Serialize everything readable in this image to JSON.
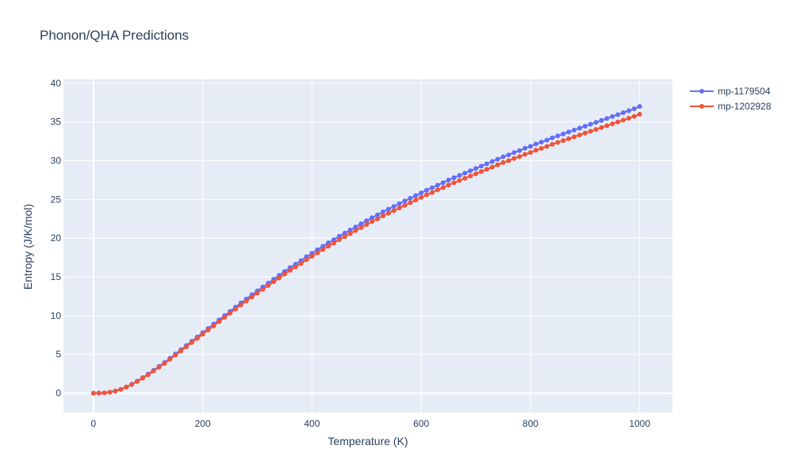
{
  "chart_data": {
    "type": "line",
    "title": "Phonon/QHA Predictions",
    "xlabel": "Temperature (K)",
    "ylabel": "Entropy (J/K/mol)",
    "xlim": [
      -55,
      1060
    ],
    "ylim": [
      -2.5,
      40.5
    ],
    "xticks": [
      0,
      200,
      400,
      600,
      800,
      1000
    ],
    "yticks": [
      0,
      5,
      10,
      15,
      20,
      25,
      30,
      35,
      40
    ],
    "grid": true,
    "legend_position": "top-right",
    "series": [
      {
        "name": "mp-1179504",
        "color": "#636efa",
        "x": [
          0,
          10,
          20,
          30,
          40,
          50,
          60,
          70,
          80,
          90,
          100,
          110,
          120,
          130,
          140,
          150,
          160,
          170,
          180,
          190,
          200,
          210,
          220,
          230,
          240,
          250,
          260,
          270,
          280,
          290,
          300,
          310,
          320,
          330,
          340,
          350,
          360,
          370,
          380,
          390,
          400,
          410,
          420,
          430,
          440,
          450,
          460,
          470,
          480,
          490,
          500,
          510,
          520,
          530,
          540,
          550,
          560,
          570,
          580,
          590,
          600,
          610,
          620,
          630,
          640,
          650,
          660,
          670,
          680,
          690,
          700,
          710,
          720,
          730,
          740,
          750,
          760,
          770,
          780,
          790,
          800,
          810,
          820,
          830,
          840,
          850,
          860,
          870,
          880,
          890,
          900,
          910,
          920,
          930,
          940,
          950,
          960,
          970,
          980,
          990,
          1000
        ],
        "y": [
          0,
          0.01,
          0.04,
          0.12,
          0.28,
          0.5,
          0.8,
          1.15,
          1.55,
          2,
          2.45,
          2.95,
          3.45,
          3.95,
          4.5,
          5.05,
          5.6,
          6.15,
          6.7,
          7.25,
          7.8,
          8.35,
          8.9,
          9.45,
          10,
          10.55,
          11.1,
          11.65,
          12.15,
          12.7,
          13.2,
          13.7,
          14.2,
          14.7,
          15.2,
          15.7,
          16.2,
          16.65,
          17.1,
          17.6,
          18.05,
          18.5,
          18.95,
          19.4,
          19.8,
          20.25,
          20.65,
          21.05,
          21.45,
          21.85,
          22.25,
          22.65,
          23,
          23.4,
          23.75,
          24.1,
          24.45,
          24.8,
          25.15,
          25.5,
          25.85,
          26.2,
          26.5,
          26.85,
          27.15,
          27.5,
          27.8,
          28.1,
          28.4,
          28.7,
          29,
          29.3,
          29.6,
          29.9,
          30.2,
          30.5,
          30.75,
          31.05,
          31.3,
          31.6,
          31.85,
          32.15,
          32.4,
          32.65,
          32.95,
          33.2,
          33.45,
          33.7,
          33.95,
          34.2,
          34.45,
          34.7,
          34.95,
          35.2,
          35.45,
          35.7,
          35.95,
          36.2,
          36.45,
          36.7,
          37
        ]
      },
      {
        "name": "mp-1202928",
        "color": "#ef553b",
        "x": [
          0,
          10,
          20,
          30,
          40,
          50,
          60,
          70,
          80,
          90,
          100,
          110,
          120,
          130,
          140,
          150,
          160,
          170,
          180,
          190,
          200,
          210,
          220,
          230,
          240,
          250,
          260,
          270,
          280,
          290,
          300,
          310,
          320,
          330,
          340,
          350,
          360,
          370,
          380,
          390,
          400,
          410,
          420,
          430,
          440,
          450,
          460,
          470,
          480,
          490,
          500,
          510,
          520,
          530,
          540,
          550,
          560,
          570,
          580,
          590,
          600,
          610,
          620,
          630,
          640,
          650,
          660,
          670,
          680,
          690,
          700,
          710,
          720,
          730,
          740,
          750,
          760,
          770,
          780,
          790,
          800,
          810,
          820,
          830,
          840,
          850,
          860,
          870,
          880,
          890,
          900,
          910,
          920,
          930,
          940,
          950,
          960,
          970,
          980,
          990,
          1000
        ],
        "y": [
          0,
          0.01,
          0.04,
          0.12,
          0.27,
          0.48,
          0.77,
          1.11,
          1.5,
          1.93,
          2.37,
          2.86,
          3.35,
          3.84,
          4.37,
          4.91,
          5.45,
          5.99,
          6.53,
          7.07,
          7.61,
          8.15,
          8.69,
          9.23,
          9.77,
          10.31,
          10.85,
          11.39,
          11.88,
          12.42,
          12.91,
          13.4,
          13.89,
          14.38,
          14.87,
          15.36,
          15.85,
          16.29,
          16.73,
          17.22,
          17.66,
          18.1,
          18.54,
          18.98,
          19.37,
          19.81,
          20.2,
          20.59,
          20.98,
          21.37,
          21.76,
          22.15,
          22.49,
          22.88,
          23.22,
          23.56,
          23.9,
          24.24,
          24.58,
          24.92,
          25.26,
          25.6,
          25.89,
          26.23,
          26.52,
          26.86,
          27.15,
          27.44,
          27.73,
          28.02,
          28.31,
          28.6,
          28.89,
          29.18,
          29.47,
          29.76,
          30,
          30.29,
          30.53,
          30.82,
          31.06,
          31.35,
          31.59,
          31.83,
          32.12,
          32.36,
          32.6,
          32.84,
          33.08,
          33.32,
          33.56,
          33.8,
          34.04,
          34.28,
          34.52,
          34.76,
          35,
          35.24,
          35.48,
          35.72,
          36
        ]
      }
    ]
  }
}
